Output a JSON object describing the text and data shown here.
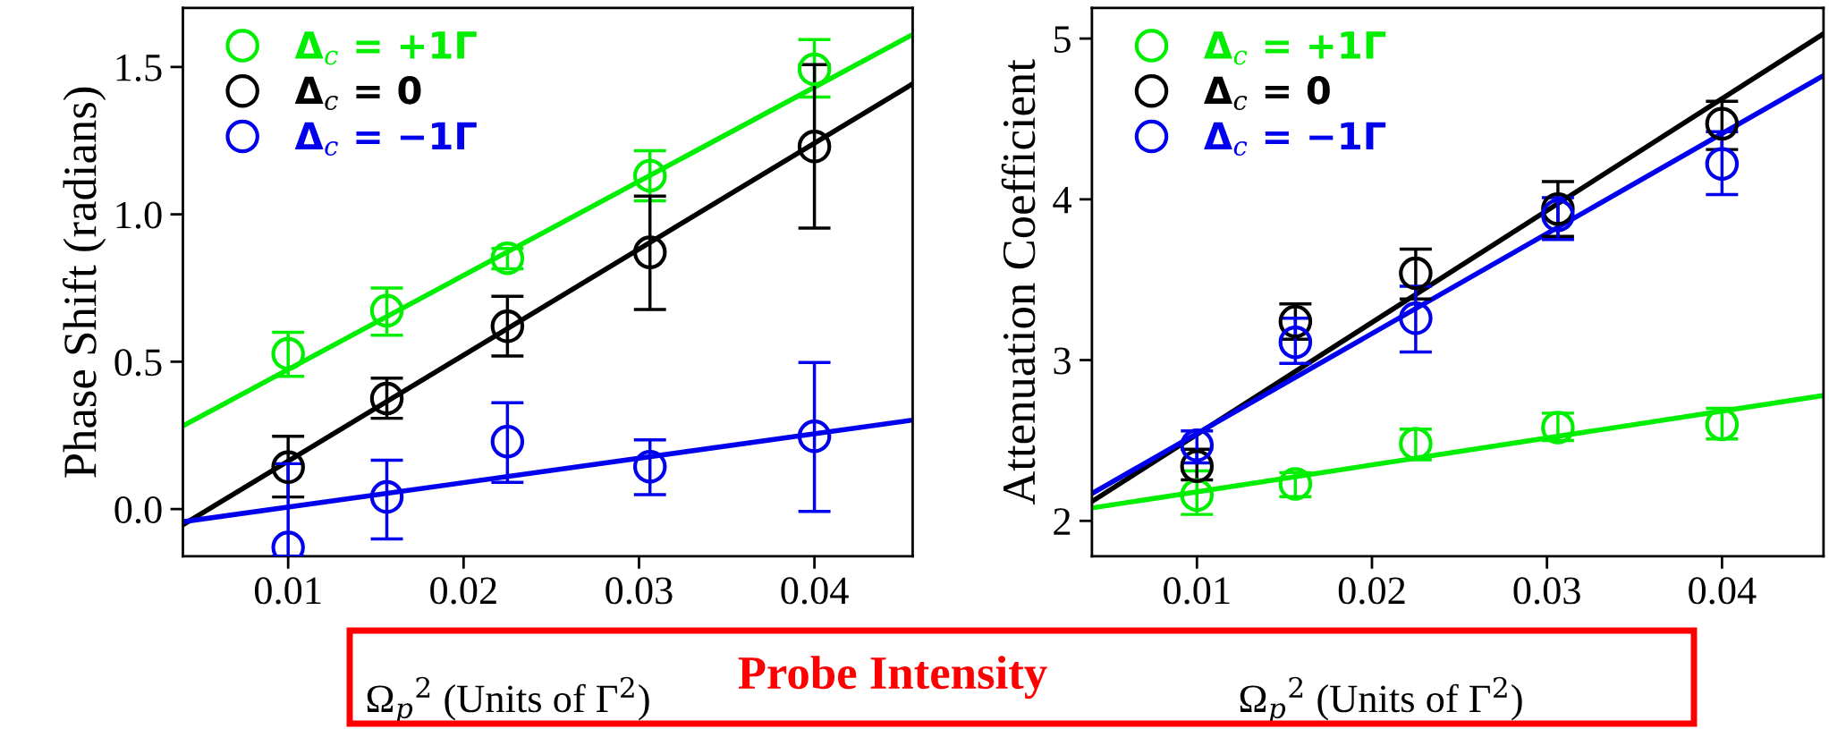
{
  "chart_data": [
    {
      "type": "scatter",
      "ylabel": "Phase Shift (radians)",
      "xlabel": "Ω$_{p}$$^{2}$ (Units of Γ$^{2}$)",
      "xlim": [
        0.004,
        0.0456
      ],
      "xticks": [
        0.01,
        0.02,
        0.03,
        0.04
      ],
      "ylim": [
        -0.16,
        1.7
      ],
      "yticks": [
        {
          "value": 0,
          "label": "0.0"
        },
        0.5,
        {
          "value": 1,
          "label": "1.0"
        },
        1.5
      ],
      "marker": "circle",
      "legend": "top left",
      "grid": false,
      "annotations": [
        "Probe Intensity"
      ],
      "x": [
        0.01,
        0.015625,
        0.0225,
        0.030625,
        0.04
      ],
      "series": [
        {
          "name": "Δ$_{c}$ = +1Γ",
          "color": "#00ee00",
          "values": [
            0.527,
            0.673,
            0.851,
            1.131,
            1.492
          ],
          "errors": [
            [
              0.45,
              0.6
            ],
            [
              0.59,
              0.75
            ],
            [
              0.815,
              0.884
            ],
            [
              1.046,
              1.216
            ],
            [
              1.398,
              1.593
            ]
          ]
        },
        {
          "name": "Δ$_{c}$ = 0",
          "color": "#000000",
          "values": [
            0.142,
            0.375,
            0.62,
            0.871,
            1.23
          ],
          "errors": [
            [
              0.041,
              0.247
            ],
            [
              0.308,
              0.444
            ],
            [
              0.519,
              0.722
            ],
            [
              0.677,
              1.062
            ],
            [
              0.953,
              1.508
            ]
          ]
        },
        {
          "name": "Δ$_{c}$ = −1Γ",
          "color": "#0000ee",
          "values": [
            -0.13,
            0.041,
            0.229,
            0.144,
            0.247
          ],
          "errors": [
            [
              -0.16,
              0.154
            ],
            [
              -0.101,
              0.166
            ],
            [
              0.091,
              0.361
            ],
            [
              0.049,
              0.235
            ],
            [
              -0.008,
              0.497
            ]
          ]
        },
        {
          "type": "line",
          "marker": "none",
          "color": "#00ee00",
          "x": [
            0.004,
            0.0456
          ],
          "values": [
            0.282,
            1.61
          ]
        },
        {
          "type": "line",
          "marker": "none",
          "color": "#000000",
          "x": [
            0.004,
            0.0456
          ],
          "values": [
            -0.053,
            1.443
          ]
        },
        {
          "type": "line",
          "marker": "none",
          "color": "#0000ee",
          "x": [
            0.004,
            0.0456
          ],
          "values": [
            -0.043,
            0.302
          ]
        }
      ]
    },
    {
      "type": "scatter",
      "ylabel": "Attenuation Coefficient",
      "xlabel": "Ω$_{p}$$^{2}$ (Units of Γ$^{2}$)",
      "xlim": [
        0.004,
        0.0458
      ],
      "xticks": [
        0.01,
        0.02,
        0.03,
        0.04
      ],
      "ylim": [
        1.78,
        5.19
      ],
      "yticks": [
        2,
        3,
        4,
        5
      ],
      "marker": "circle",
      "legend": "top left",
      "grid": false,
      "x": [
        0.01,
        0.015625,
        0.0225,
        0.030625,
        0.04
      ],
      "series": [
        {
          "name": "Δ$_{c}$ = +1Γ",
          "color": "#00ee00",
          "values": [
            2.16,
            2.23,
            2.48,
            2.58,
            2.6
          ],
          "errors": [
            [
              2.04,
              2.31
            ],
            [
              2.15,
              2.3
            ],
            [
              2.38,
              2.57
            ],
            [
              2.5,
              2.67
            ],
            [
              2.51,
              2.7
            ]
          ]
        },
        {
          "name": "Δ$_{c}$ = 0",
          "color": "#000000",
          "values": [
            2.34,
            3.24,
            3.54,
            3.94,
            4.47
          ],
          "errors": [
            [
              2.255,
              2.445
            ],
            [
              3.13,
              3.35
            ],
            [
              3.38,
              3.69
            ],
            [
              3.77,
              4.11
            ],
            [
              4.31,
              4.61
            ]
          ]
        },
        {
          "name": "Δ$_{c}$ = −1Γ",
          "color": "#0000ee",
          "values": [
            2.47,
            3.11,
            3.26,
            3.9,
            4.22
          ],
          "errors": [
            [
              2.36,
              2.56
            ],
            [
              2.98,
              3.26
            ],
            [
              3.05,
              3.46
            ],
            [
              3.75,
              4.01
            ],
            [
              4.03,
              4.42
            ]
          ]
        },
        {
          "type": "line",
          "marker": "none",
          "color": "#00ee00",
          "x": [
            0.004,
            0.0458
          ],
          "values": [
            2.08,
            2.78
          ]
        },
        {
          "type": "line",
          "marker": "none",
          "color": "#000000",
          "x": [
            0.004,
            0.0458
          ],
          "values": [
            2.12,
            5.03
          ]
        },
        {
          "type": "line",
          "marker": "none",
          "color": "#0000ee",
          "x": [
            0.004,
            0.0458
          ],
          "values": [
            2.17,
            4.77
          ]
        }
      ]
    }
  ]
}
